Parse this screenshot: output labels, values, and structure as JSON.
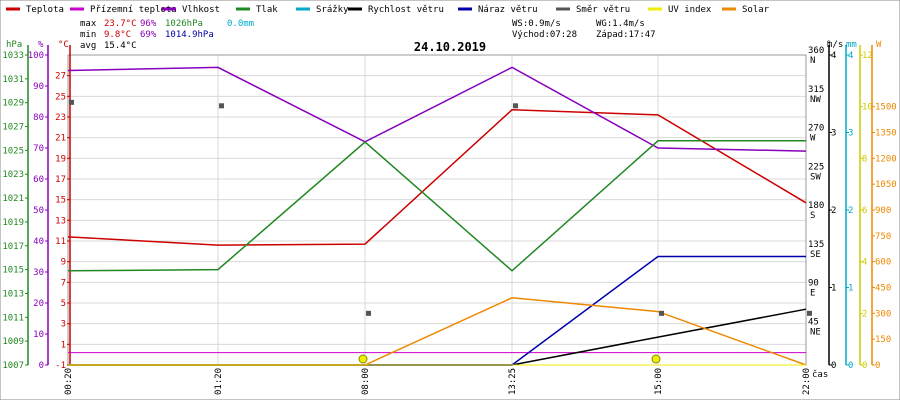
{
  "legend": [
    {
      "name": "Teplota",
      "color": "#cc0000"
    },
    {
      "name": "Přízemní teplota",
      "color": "#cc00cc"
    },
    {
      "name": "Vlhkost",
      "color": "#8800bb"
    },
    {
      "name": "Tlak",
      "color": "#228822"
    },
    {
      "name": "Srážky",
      "color": "#00aacc"
    },
    {
      "name": "Rychlost větru",
      "color": "#000000"
    },
    {
      "name": "Náraz větru",
      "color": "#0000aa"
    },
    {
      "name": "Směr větru",
      "color": "#555555"
    },
    {
      "name": "UV index",
      "color": "#eeee00"
    },
    {
      "name": "Solar",
      "color": "#ee8800"
    }
  ],
  "summary": {
    "max_label": "max",
    "max_temp": "23.7°C",
    "max_hum": "96%",
    "max_press": "1026hPa",
    "rain": "0.0mm",
    "min_label": "min",
    "min_temp": "9.8°C",
    "min_hum": "69%",
    "min_press": "1014.9hPa",
    "avg_label": "avg",
    "avg_temp": "15.4°C",
    "ws": "WS:0.9m/s",
    "wg": "WG:1.4m/s",
    "sunrise": "Východ:07:28",
    "sunset": "Západ:17:47"
  },
  "chart_data": {
    "type": "line",
    "title": "24.10.2019",
    "x": [
      "00:20",
      "01:20",
      "08:00",
      "13:25",
      "15:00",
      "22:00"
    ],
    "x_axis_label": "čas",
    "axes": {
      "hpa": {
        "unit": "hPa",
        "range": [
          1007,
          1033
        ],
        "ticks": [
          1007,
          1009,
          1011,
          1013,
          1015,
          1017,
          1019,
          1021,
          1023,
          1025,
          1027,
          1029,
          1031,
          1033
        ],
        "color": "#228822"
      },
      "pct": {
        "unit": "%",
        "range": [
          0,
          100
        ],
        "ticks": [
          0,
          10,
          20,
          30,
          40,
          50,
          60,
          70,
          80,
          90,
          100
        ],
        "color": "#8800bb"
      },
      "temp": {
        "unit": "°C",
        "range": [
          -1,
          29
        ],
        "ticks": [
          -1,
          1,
          3,
          5,
          7,
          9,
          11,
          13,
          15,
          17,
          19,
          21,
          23,
          25,
          27
        ],
        "color": "#cc0000"
      },
      "dir": {
        "unit": "°",
        "range": [
          0,
          360
        ],
        "ticks": [
          45,
          90,
          135,
          180,
          225,
          270,
          315,
          360
        ],
        "labels": [
          "NE",
          "E",
          "SE",
          "S",
          "SW",
          "W",
          "NW",
          "N"
        ],
        "color": "#000000"
      },
      "ms": {
        "unit": "m/s",
        "range": [
          0,
          4
        ],
        "ticks": [
          0,
          1,
          2,
          3,
          4
        ],
        "color": "#000000"
      },
      "mm": {
        "unit": "mm",
        "range": [
          0,
          4
        ],
        "ticks": [
          0,
          1,
          2,
          3,
          4
        ],
        "color": "#00aacc"
      },
      "uv": {
        "unit": "",
        "range": [
          0,
          12
        ],
        "ticks": [
          0,
          2,
          4,
          6,
          8,
          10,
          12
        ],
        "color": "#cccc00"
      },
      "w": {
        "unit": "W",
        "range": [
          0,
          1800
        ],
        "ticks": [
          0,
          150,
          300,
          450,
          600,
          750,
          900,
          1050,
          1200,
          1350,
          1500
        ],
        "color": "#ee8800"
      }
    },
    "series": [
      {
        "name": "Teplota",
        "axis": "temp",
        "color": "#cc0000",
        "values": [
          11.4,
          10.6,
          10.7,
          23.7,
          23.2,
          14.7
        ]
      },
      {
        "name": "Přízemní teplota",
        "axis": "temp",
        "color": "#cc00cc",
        "values": [
          0.2,
          0.2,
          0.2,
          0.2,
          0.2,
          0.2
        ]
      },
      {
        "name": "Vlhkost",
        "axis": "pct",
        "color": "#8800bb",
        "values": [
          95,
          96,
          72,
          96,
          70,
          69
        ]
      },
      {
        "name": "Tlak",
        "axis": "hpa",
        "color": "#228822",
        "values": [
          1014.9,
          1015.0,
          1025.7,
          1014.9,
          1025.8,
          1025.8
        ]
      },
      {
        "name": "Srážky",
        "axis": "mm",
        "color": "#00aacc",
        "values": [
          0,
          0,
          0,
          0,
          0,
          0
        ]
      },
      {
        "name": "Rychlost větru",
        "axis": "ms",
        "color": "#000000",
        "values": [
          0,
          0,
          0,
          0,
          0.36,
          0.72
        ]
      },
      {
        "name": "Náraz větru",
        "axis": "ms",
        "color": "#0000aa",
        "values": [
          0,
          0,
          0,
          0,
          1.4,
          1.4
        ]
      },
      {
        "name": "Solar",
        "axis": "w",
        "color": "#ee8800",
        "values": [
          0,
          0,
          0,
          390,
          310,
          0
        ]
      },
      {
        "name": "UV index",
        "axis": "uv",
        "color": "#eeee00",
        "values": [
          0,
          0,
          0,
          0,
          0,
          0
        ]
      }
    ],
    "wind_direction": {
      "axis": "dir",
      "color": "#555555",
      "values": [
        305,
        301,
        60,
        301,
        60,
        60
      ]
    },
    "uv_markers": {
      "x_index": [
        2,
        4
      ],
      "values": [
        0,
        0
      ]
    }
  }
}
